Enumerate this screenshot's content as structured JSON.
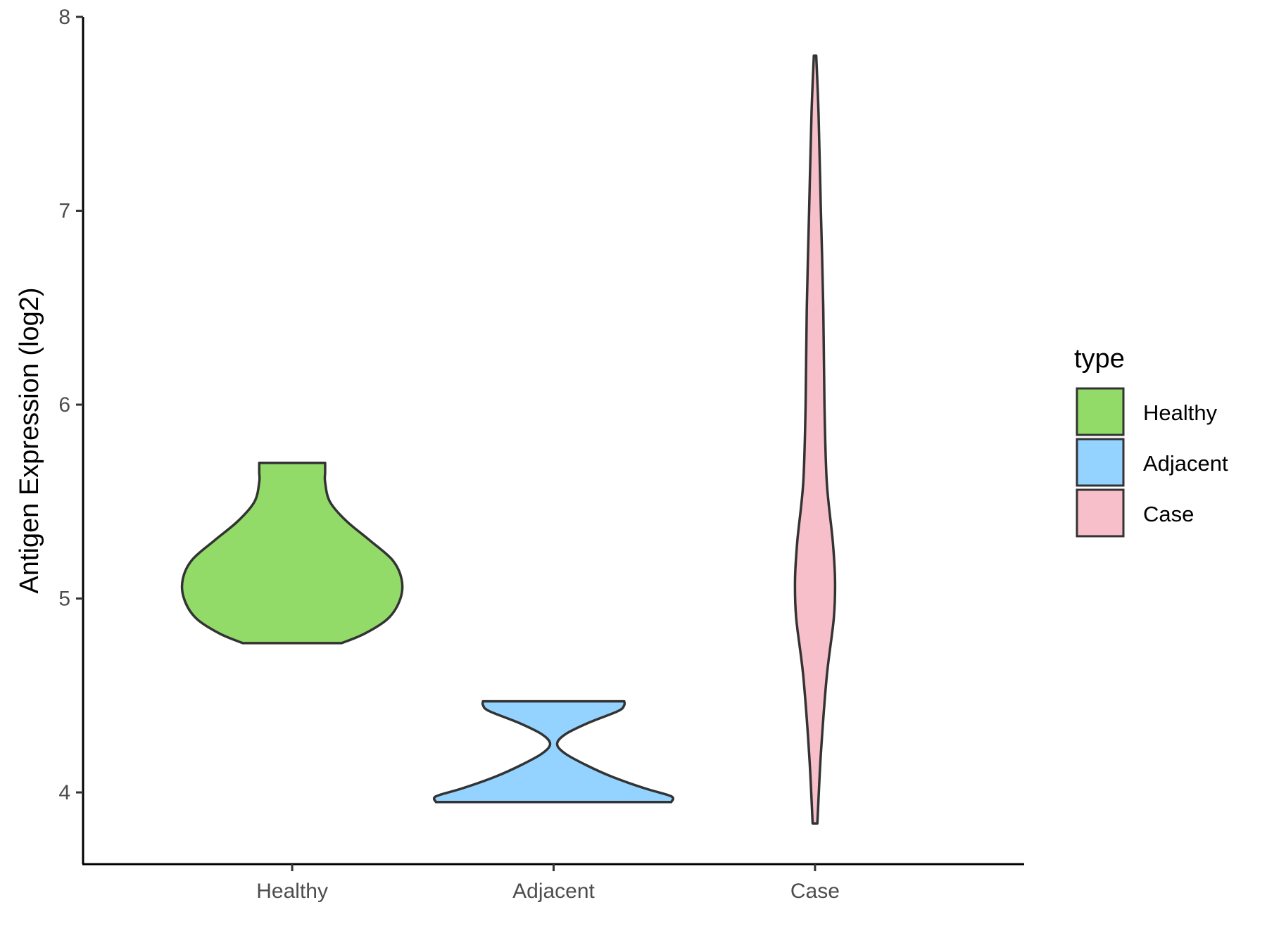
{
  "chart_data": {
    "type": "violin",
    "ylabel": "Antigen Expression (log2)",
    "xlabel": "",
    "ylim": [
      3.63,
      8.0
    ],
    "yticks": [
      4,
      5,
      6,
      7,
      8
    ],
    "categories": [
      "Healthy",
      "Adjacent",
      "Case"
    ],
    "grid": false,
    "legend": {
      "title": "type",
      "placement": "right",
      "entries": [
        "Healthy",
        "Adjacent",
        "Case"
      ]
    },
    "colors": {
      "Healthy": "#93db69",
      "Adjacent": "#94d2ff",
      "Case": "#f7bfca",
      "outline": "#333333"
    },
    "series": [
      {
        "category": "Healthy",
        "min": 4.77,
        "max": 5.7,
        "density_profile": [
          [
            4.77,
            0.42
          ],
          [
            4.82,
            0.62
          ],
          [
            4.9,
            0.82
          ],
          [
            5.0,
            0.92
          ],
          [
            5.1,
            0.93
          ],
          [
            5.2,
            0.85
          ],
          [
            5.3,
            0.66
          ],
          [
            5.4,
            0.46
          ],
          [
            5.5,
            0.32
          ],
          [
            5.6,
            0.28
          ],
          [
            5.65,
            0.28
          ],
          [
            5.7,
            0.28
          ]
        ]
      },
      {
        "category": "Adjacent",
        "min": 3.95,
        "max": 4.47,
        "density_profile": [
          [
            3.95,
            1.0
          ],
          [
            3.98,
            1.0
          ],
          [
            4.02,
            0.78
          ],
          [
            4.08,
            0.5
          ],
          [
            4.14,
            0.28
          ],
          [
            4.2,
            0.1
          ],
          [
            4.25,
            0.03
          ],
          [
            4.3,
            0.1
          ],
          [
            4.36,
            0.3
          ],
          [
            4.42,
            0.55
          ],
          [
            4.45,
            0.6
          ],
          [
            4.47,
            0.6
          ]
        ]
      },
      {
        "category": "Case",
        "min": 3.84,
        "max": 7.8,
        "density_profile": [
          [
            3.84,
            0.02
          ],
          [
            4.2,
            0.05
          ],
          [
            4.6,
            0.1
          ],
          [
            4.9,
            0.16
          ],
          [
            5.1,
            0.17
          ],
          [
            5.3,
            0.15
          ],
          [
            5.6,
            0.1
          ],
          [
            6.0,
            0.08
          ],
          [
            6.5,
            0.07
          ],
          [
            7.0,
            0.05
          ],
          [
            7.5,
            0.03
          ],
          [
            7.8,
            0.01
          ]
        ]
      }
    ]
  }
}
